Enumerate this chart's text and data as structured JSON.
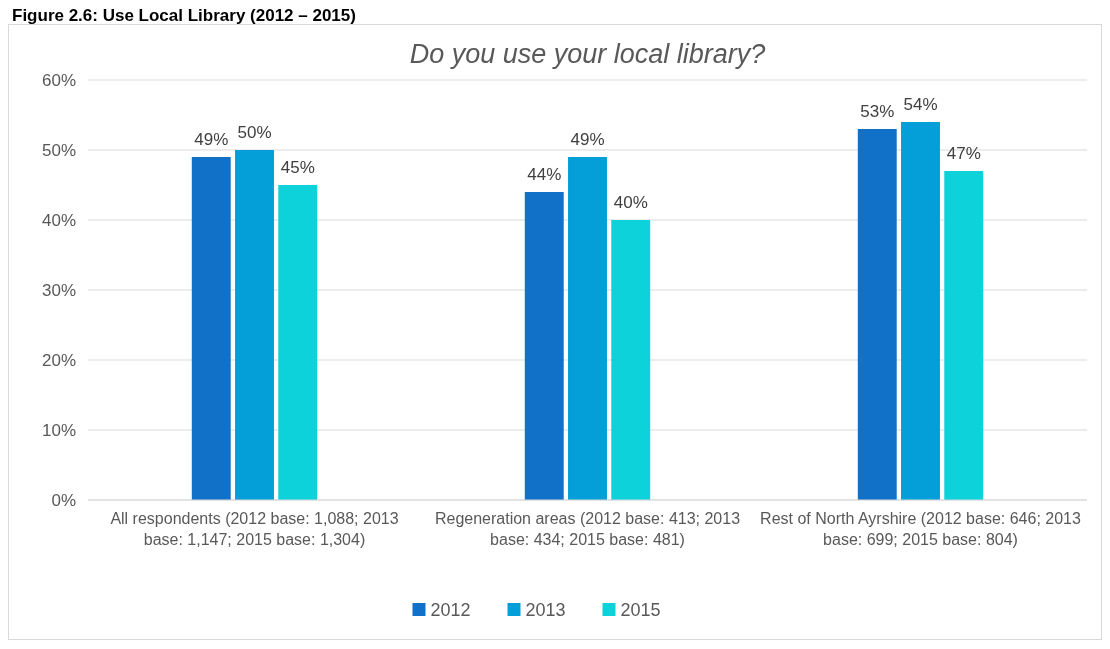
{
  "chart_data": {
    "type": "bar",
    "title": "Do you use your local library?",
    "annotations": [
      "Figure 2.6: Use Local Library (2012 – 2015)"
    ],
    "categories": [
      "All respondents (2012 base: 1,088; 2013 base: 1,147; 2015 base: 1,304)",
      "Regeneration areas (2012 base: 413; 2013 base: 434; 2015 base: 481)",
      "Rest of North Ayrshire (2012 base: 646; 2013 base: 699; 2015 base: 804)"
    ],
    "series": [
      {
        "name": "2012",
        "color": "#1170c8",
        "values": [
          49,
          44,
          53
        ],
        "value_labels": [
          "49%",
          "44%",
          "53%"
        ]
      },
      {
        "name": "2013",
        "color": "#049fd9",
        "values": [
          50,
          49,
          54
        ],
        "value_labels": [
          "50%",
          "49%",
          "54%"
        ]
      },
      {
        "name": "2015",
        "color": "#0dd2d9",
        "values": [
          45,
          40,
          47
        ],
        "value_labels": [
          "45%",
          "40%",
          "47%"
        ]
      }
    ],
    "ylim": [
      0,
      60
    ],
    "yticks": [
      {
        "value": 0,
        "label": "0%"
      },
      {
        "value": 10,
        "label": "10%"
      },
      {
        "value": 20,
        "label": "20%"
      },
      {
        "value": 30,
        "label": "30%"
      },
      {
        "value": 40,
        "label": "40%"
      },
      {
        "value": 50,
        "label": "50%"
      },
      {
        "value": 60,
        "label": "60%"
      }
    ],
    "grid": "y",
    "legend": "bottom"
  }
}
